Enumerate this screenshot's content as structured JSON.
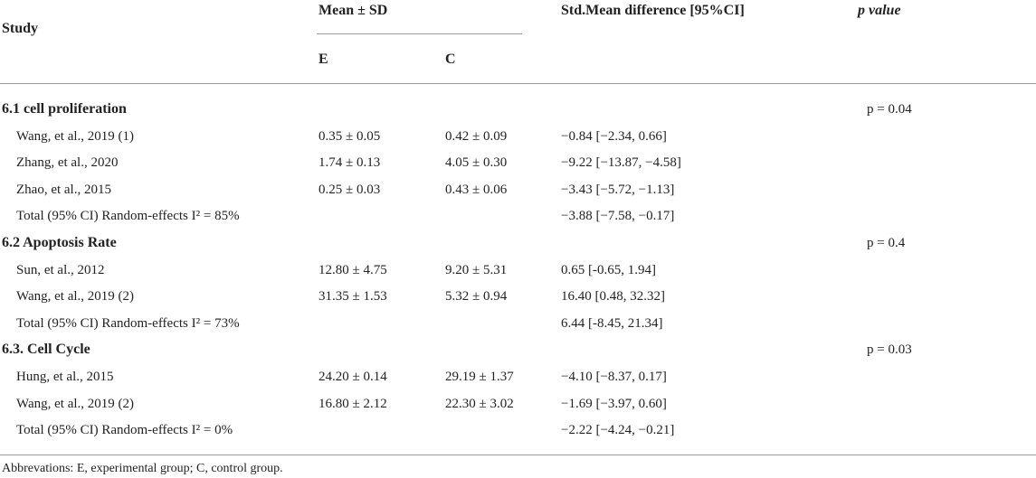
{
  "table": {
    "header": {
      "study": "Study",
      "mean_sd": "Mean ± SD",
      "e": "E",
      "c": "C",
      "smd": "Std.Mean difference [95%CI]",
      "p_value": "p value"
    },
    "groups": [
      {
        "title": "6.1 cell proliferation",
        "p": "p = 0.04",
        "rows": [
          [
            "Wang, et al., 2019 (1)",
            "0.35 ± 0.05",
            "0.42 ± 0.09",
            "−0.84 [−2.34, 0.66]"
          ],
          [
            "Zhang, et al., 2020",
            "1.74 ± 0.13",
            "4.05 ± 0.30",
            "−9.22 [−13.87, −4.58]"
          ],
          [
            "Zhao, et al., 2015",
            "0.25 ± 0.03",
            "0.43 ± 0.06",
            "−3.43 [−5.72, −1.13]"
          ],
          [
            "Total (95% CI) Random-effects I² = 85%",
            "−3.88 [−7.58, −0.17]"
          ]
        ]
      },
      {
        "title": "6.2 Apoptosis Rate",
        "p": "p = 0.4",
        "rows": [
          [
            "Sun, et al., 2012",
            "12.80 ± 4.75",
            "9.20 ± 5.31",
            "0.65 [-0.65, 1.94]"
          ],
          [
            "Wang, et al., 2019 (2)",
            "31.35 ± 1.53",
            "5.32 ± 0.94",
            "16.40 [0.48, 32.32]"
          ],
          [
            "Total (95% CI) Random-effects I² = 73%",
            "6.44 [-8.45, 21.34]"
          ]
        ]
      },
      {
        "title": "6.3. Cell Cycle",
        "p": "p = 0.03",
        "rows": [
          [
            "Hung, et al., 2015",
            "24.20 ± 0.14",
            "29.19 ± 1.37",
            "−4.10 [−8.37, 0.17]"
          ],
          [
            "Wang, et al., 2019 (2)",
            "16.80 ± 2.12",
            "22.30 ± 3.02",
            "−1.69 [−3.97, 0.60]"
          ],
          [
            "Total (95% CI) Random-effects I² = 0%",
            "−2.22 [−4.24, −0.21]"
          ]
        ]
      }
    ],
    "footnote": "Abbrevations: E, experimental group; C, control group."
  }
}
